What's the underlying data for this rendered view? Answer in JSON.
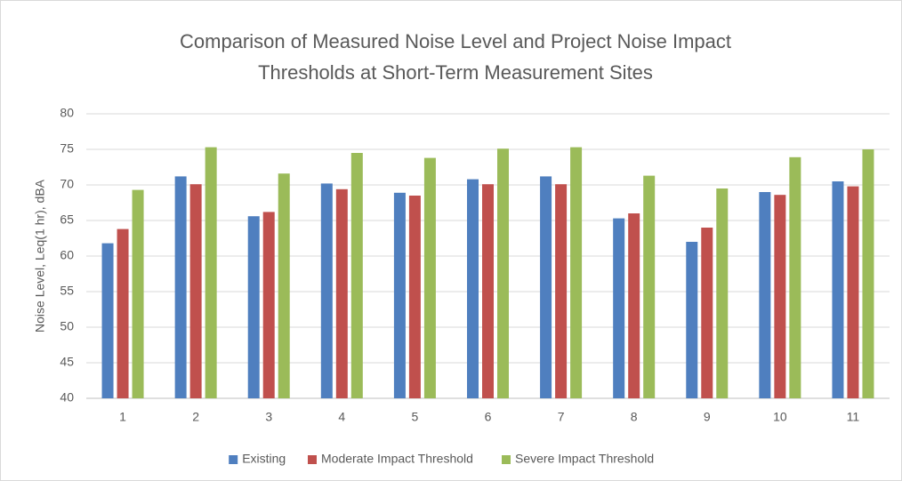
{
  "chart_data": {
    "type": "bar",
    "title": [
      "Comparison of Measured Noise Level and Project Noise Impact",
      "Thresholds at Short-Term Measurement Sites"
    ],
    "y_label": "Noise Level, Leq(1 hr), dBA",
    "categories": [
      "1",
      "2",
      "3",
      "4",
      "5",
      "6",
      "7",
      "8",
      "9",
      "10",
      "11"
    ],
    "series": [
      {
        "name": "Existing",
        "color": "#4f7fbf",
        "values": [
          61.8,
          71.2,
          65.6,
          70.2,
          68.9,
          70.8,
          71.2,
          65.3,
          62.0,
          69.0,
          70.5
        ]
      },
      {
        "name": "Moderate Impact Threshold",
        "color": "#c0504d",
        "values": [
          63.8,
          70.1,
          66.2,
          69.4,
          68.5,
          70.1,
          70.1,
          66.0,
          64.0,
          68.6,
          69.8
        ]
      },
      {
        "name": "Severe Impact Threshold",
        "color": "#9bbb59",
        "values": [
          69.3,
          75.3,
          71.6,
          74.5,
          73.8,
          75.1,
          75.3,
          71.3,
          69.5,
          73.9,
          75.0
        ]
      }
    ],
    "ylim": [
      40,
      80
    ],
    "yticks": [
      40,
      45,
      50,
      55,
      60,
      65,
      70,
      75,
      80
    ],
    "grid": true,
    "legend": "bottom"
  }
}
